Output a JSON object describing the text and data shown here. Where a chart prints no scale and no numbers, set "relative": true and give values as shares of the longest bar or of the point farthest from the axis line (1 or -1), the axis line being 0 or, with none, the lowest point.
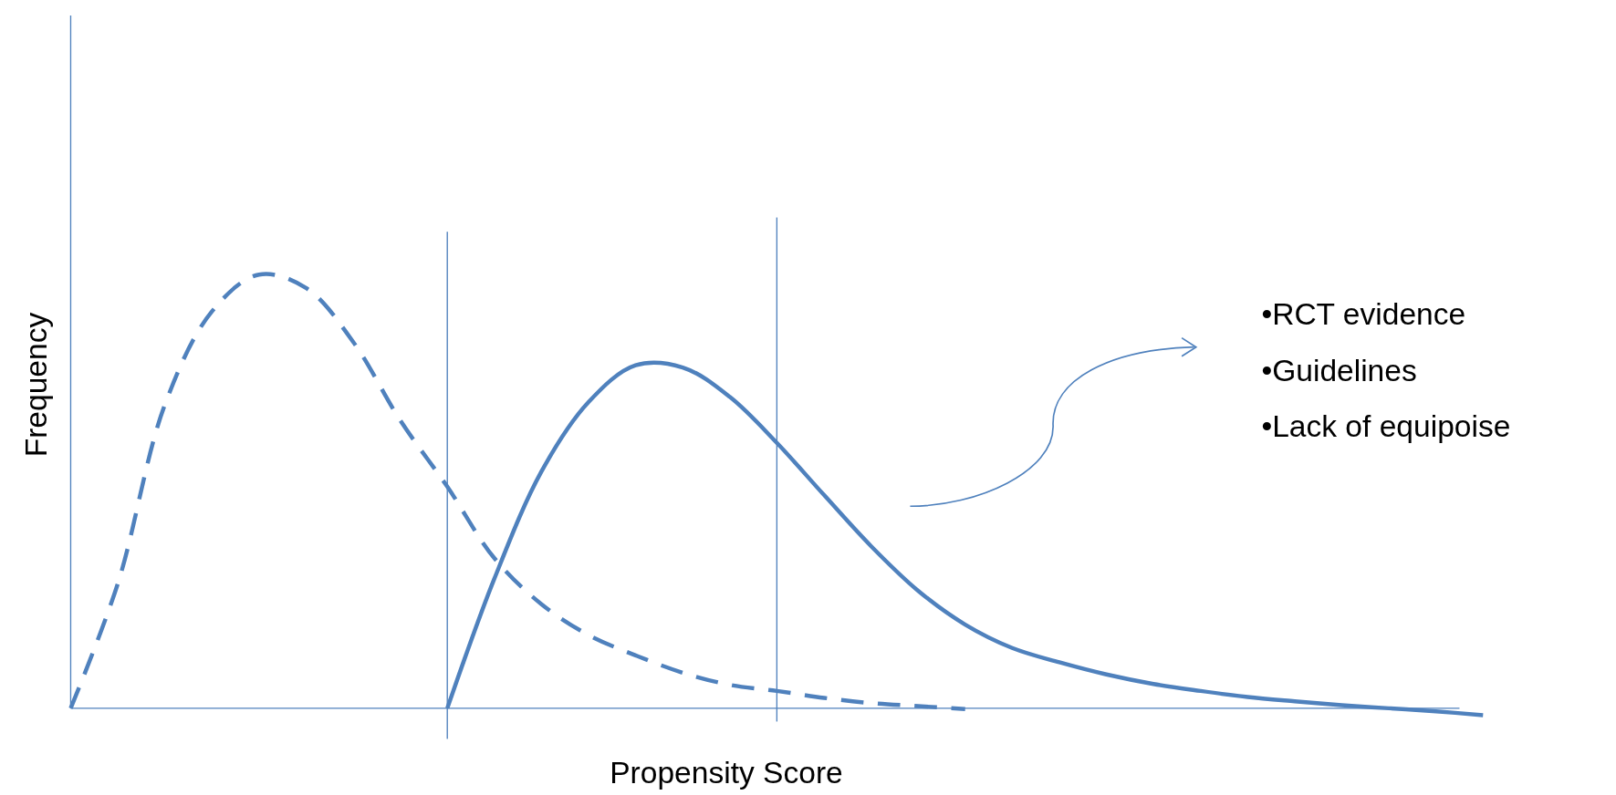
{
  "chart_data": {
    "type": "line",
    "relative": true,
    "xlabel": "Propensity Score",
    "ylabel": "Frequency",
    "categories": [
      null,
      null,
      null,
      null,
      null,
      null,
      null,
      null,
      null,
      null,
      null,
      null,
      null,
      null,
      null,
      null,
      null,
      null,
      null,
      null,
      null,
      null,
      null,
      null,
      null,
      null,
      null,
      null,
      null,
      null,
      null
    ],
    "series": [
      {
        "color": "#4f81bd",
        "line_style": "dashed",
        "values": [
          0,
          0.287,
          0.7,
          0.915,
          1,
          0.969,
          0.845,
          0.664,
          0.511,
          0.346,
          0.24,
          0.169,
          0.122,
          0.082,
          0.054,
          0.04,
          0.024,
          0.012,
          0.005,
          -0.002,
          null,
          null,
          null,
          null,
          null,
          null,
          null,
          null,
          null,
          null,
          null
        ]
      },
      {
        "color": "#4f81bd",
        "line_style": "solid",
        "values": [
          null,
          null,
          null,
          null,
          null,
          null,
          null,
          null,
          0,
          0.299,
          0.546,
          0.706,
          0.791,
          0.786,
          0.718,
          0.612,
          0.492,
          0.374,
          0.271,
          0.193,
          0.139,
          0.106,
          0.078,
          0.056,
          0.04,
          0.026,
          0.016,
          0.007,
          0,
          -0.007,
          -0.016
        ]
      }
    ],
    "annotations": [
      "•RCT evidence",
      "•Guidelines",
      "•Lack of equipoise"
    ],
    "ref_lines": [
      {
        "axis": "y",
        "value": 0,
        "color": "#4f81bd"
      }
    ],
    "marker": "none"
  }
}
